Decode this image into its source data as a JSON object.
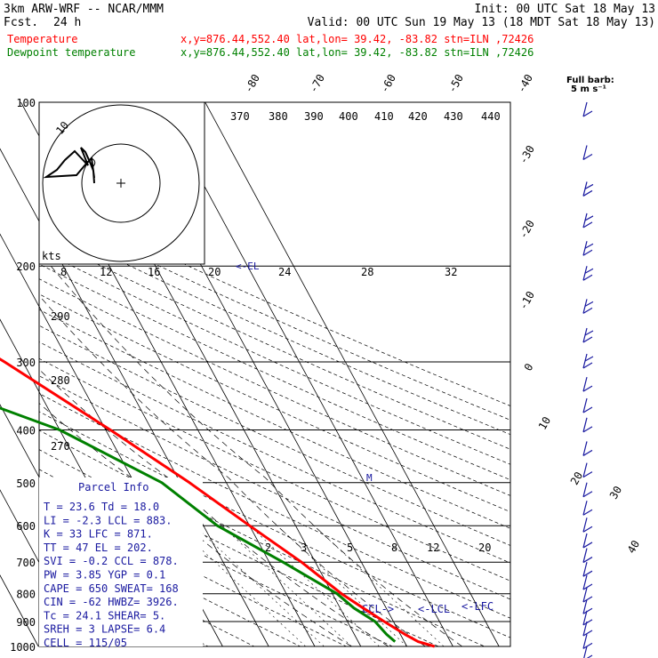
{
  "header": {
    "model": "3km ARW-WRF -- NCAR/MMM",
    "init": "Init: 00 UTC Sat 18 May 13",
    "fcst_label": "Fcst.",
    "fcst_value": "24 h",
    "valid": "Valid: 00 UTC Sun 19 May 13 (18 MDT Sat 18 May 13)",
    "temp_line": {
      "name": "Temperature",
      "loc": "x,y=876.44,552.40   lat,lon= 39.42, -83.82  stn=ILN ,72426"
    },
    "dew_line": {
      "name": "Dewpoint temperature",
      "loc": "x,y=876.44,552.40   lat,lon= 39.42, -83.82  stn=ILN ,72426"
    }
  },
  "full_barb": {
    "line1": "Full barb:",
    "line2": "5 m s⁻¹"
  },
  "colors": {
    "temperature": "#ff0000",
    "dewpoint": "#008000",
    "wind_barbs": "#1a1aa0",
    "parcel_text": "#1a1aa0"
  },
  "parcel_info": {
    "title": "Parcel Info",
    "rows": [
      "T   =    23.6  Td =  18.0",
      "LI  =    -2.3  LCL =  883.",
      "K   =     33   LFC =  871.",
      "TT  =     47   EL  =  202.",
      "SVI =    -0.2  CCL =  878.",
      "PW  =    3.85  YGP =   0.1",
      "CAPE =   650   SWEAT=  168",
      "CIN  =   -62   HWBZ= 3926.",
      "Tc  =    24.1  SHEAR=   5.",
      "SREH =    3    LAPSE=  6.4",
      "CELL = 115/05"
    ]
  },
  "annotations": {
    "el": "<-EL",
    "m": "M",
    "ccl": "CCL->",
    "lcl": "<-LCL",
    "lfc": "<-LFC",
    "hodo_speed_label": "kts"
  },
  "chart_data": {
    "type": "line",
    "title": "",
    "xlabel": "",
    "ylabel": "",
    "y_scale": "log pressure (hPa)",
    "pressure_levels": [
      100,
      200,
      300,
      400,
      500,
      600,
      700,
      800,
      900,
      1000
    ],
    "skewed_isotherm_labels": [
      -80,
      -70,
      -60,
      -50,
      -40,
      -30,
      -20,
      -10,
      0,
      10,
      20,
      30,
      40
    ],
    "theta_labels": [
      370,
      380,
      390,
      400,
      410,
      420,
      430,
      440,
      290,
      280,
      270
    ],
    "mixing_ratio_labels": [
      2,
      3,
      5,
      8,
      12,
      20
    ],
    "hodograph_ring_labels": [
      8,
      12,
      16,
      20,
      24,
      28,
      32
    ],
    "hodograph_outer_ring_label": 10,
    "series": [
      {
        "name": "Temperature",
        "points": [
          [
            1000,
            26
          ],
          [
            980,
            23
          ],
          [
            950,
            21
          ],
          [
            900,
            18
          ],
          [
            850,
            15
          ],
          [
            800,
            12
          ],
          [
            700,
            7
          ],
          [
            600,
            0
          ],
          [
            500,
            -8
          ],
          [
            400,
            -19
          ],
          [
            300,
            -34
          ],
          [
            250,
            -44
          ],
          [
            200,
            -54
          ],
          [
            175,
            -58
          ],
          [
            150,
            -59
          ],
          [
            125,
            -60
          ],
          [
            100,
            -63
          ]
        ]
      },
      {
        "name": "Dewpoint temperature",
        "points": [
          [
            980,
            18
          ],
          [
            950,
            17
          ],
          [
            900,
            16
          ],
          [
            850,
            13
          ],
          [
            800,
            11
          ],
          [
            700,
            3
          ],
          [
            600,
            -7
          ],
          [
            500,
            -14
          ],
          [
            400,
            -30
          ],
          [
            350,
            -45
          ],
          [
            300,
            -60
          ],
          [
            250,
            -64
          ],
          [
            200,
            -73
          ],
          [
            175,
            -76
          ],
          [
            150,
            -80
          ],
          [
            125,
            -87
          ],
          [
            100,
            -92
          ]
        ]
      }
    ],
    "wind_profile_hpa": [
      100,
      120,
      140,
      160,
      180,
      200,
      230,
      260,
      290,
      320,
      350,
      380,
      420,
      460,
      500,
      540,
      580,
      620,
      660,
      700,
      740,
      780,
      820,
      860,
      900,
      950,
      1000
    ]
  }
}
